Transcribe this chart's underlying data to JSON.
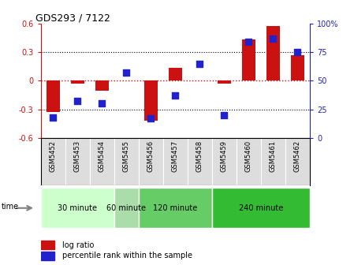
{
  "title": "GDS293 / 7122",
  "samples": [
    "GSM5452",
    "GSM5453",
    "GSM5454",
    "GSM5455",
    "GSM5456",
    "GSM5457",
    "GSM5458",
    "GSM5459",
    "GSM5460",
    "GSM5461",
    "GSM5462"
  ],
  "log_ratio": [
    -0.33,
    -0.03,
    -0.1,
    0.0,
    -0.42,
    0.14,
    0.0,
    -0.03,
    0.44,
    0.58,
    0.27
  ],
  "percentile": [
    18,
    32,
    30,
    57,
    17,
    37,
    65,
    20,
    84,
    87,
    75
  ],
  "groups": [
    {
      "label": "30 minute",
      "start": 0,
      "end": 2,
      "color": "#ccffcc"
    },
    {
      "label": "60 minute",
      "start": 3,
      "end": 3,
      "color": "#aaeaaa"
    },
    {
      "label": "120 minute",
      "start": 4,
      "end": 7,
      "color": "#66dd66"
    },
    {
      "label": "240 minute",
      "start": 8,
      "end": 10,
      "color": "#33cc33"
    }
  ],
  "ylim_left": [
    -0.6,
    0.6
  ],
  "ylim_right": [
    0,
    100
  ],
  "yticks_left": [
    -0.6,
    -0.3,
    0.0,
    0.3,
    0.6
  ],
  "yticks_right": [
    0,
    25,
    50,
    75,
    100
  ],
  "bar_color": "#cc1111",
  "dot_color": "#2222cc",
  "bar_width": 0.55,
  "dot_size": 35,
  "hline_color": "#cc1111",
  "grid_color": "#555555",
  "background_color": "#ffffff",
  "plot_bg": "#ffffff",
  "left_tick_color": "#cc1111",
  "right_tick_color": "#2222bb",
  "label_bg": "#dddddd"
}
